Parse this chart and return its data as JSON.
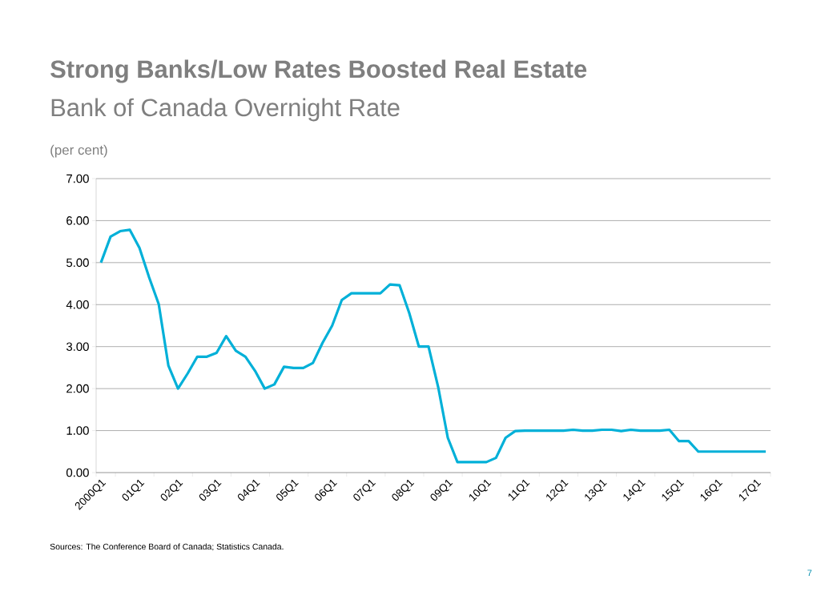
{
  "chart_data": {
    "type": "line",
    "title": "Strong Banks/Low Rates Boosted Real Estate",
    "subtitle": "Bank of Canada Overnight Rate",
    "ylabel": "(per cent)",
    "categories": [
      "2000Q1",
      null,
      null,
      null,
      "01Q1",
      null,
      null,
      null,
      "02Q1",
      null,
      null,
      null,
      "03Q1",
      null,
      null,
      null,
      "04Q1",
      null,
      null,
      null,
      "05Q1",
      null,
      null,
      null,
      "06Q1",
      null,
      null,
      null,
      "07Q1",
      null,
      null,
      null,
      "08Q1",
      null,
      null,
      null,
      "09Q1",
      null,
      null,
      null,
      "10Q1",
      null,
      null,
      null,
      "11Q1",
      null,
      null,
      null,
      "12Q1",
      null,
      null,
      null,
      "13Q1",
      null,
      null,
      null,
      "14Q1",
      null,
      null,
      null,
      "15Q1",
      null,
      null,
      null,
      "16Q1",
      null,
      null,
      null,
      "17Q1",
      null
    ],
    "values": [
      5.0,
      5.62,
      5.75,
      5.78,
      5.35,
      4.65,
      4.01,
      2.55,
      2.0,
      2.36,
      2.76,
      2.76,
      2.85,
      3.25,
      2.9,
      2.76,
      2.42,
      2.0,
      2.1,
      2.52,
      2.49,
      2.49,
      2.61,
      3.09,
      3.5,
      4.11,
      4.27,
      4.27,
      4.27,
      4.27,
      4.48,
      4.46,
      3.8,
      3.0,
      3.0,
      2.04,
      0.83,
      0.25,
      0.25,
      0.25,
      0.25,
      0.35,
      0.83,
      0.99,
      1.0,
      1.0,
      1.0,
      1.0,
      1.0,
      1.02,
      1.0,
      1.0,
      1.02,
      1.02,
      0.99,
      1.02,
      1.0,
      1.0,
      1.0,
      1.02,
      0.75,
      0.75,
      0.5,
      0.5,
      0.5,
      0.5,
      0.5,
      0.5,
      0.5,
      0.5
    ],
    "color": "#00b0d8",
    "line_style": "solid",
    "grid": "y",
    "ylim": [
      0,
      7
    ],
    "yticks": [
      {
        "value": 0,
        "label": "0.00"
      },
      {
        "value": 1,
        "label": "1.00"
      },
      {
        "value": 2,
        "label": "2.00"
      },
      {
        "value": 3,
        "label": "3.00"
      },
      {
        "value": 4,
        "label": "4.00"
      },
      {
        "value": 5,
        "label": "5.00"
      },
      {
        "value": 6,
        "label": "6.00"
      },
      {
        "value": 7,
        "label": "7.00"
      }
    ],
    "annotations": [
      "Sources: The Conference Board of Canada; Statistics Canada.",
      "7"
    ]
  }
}
